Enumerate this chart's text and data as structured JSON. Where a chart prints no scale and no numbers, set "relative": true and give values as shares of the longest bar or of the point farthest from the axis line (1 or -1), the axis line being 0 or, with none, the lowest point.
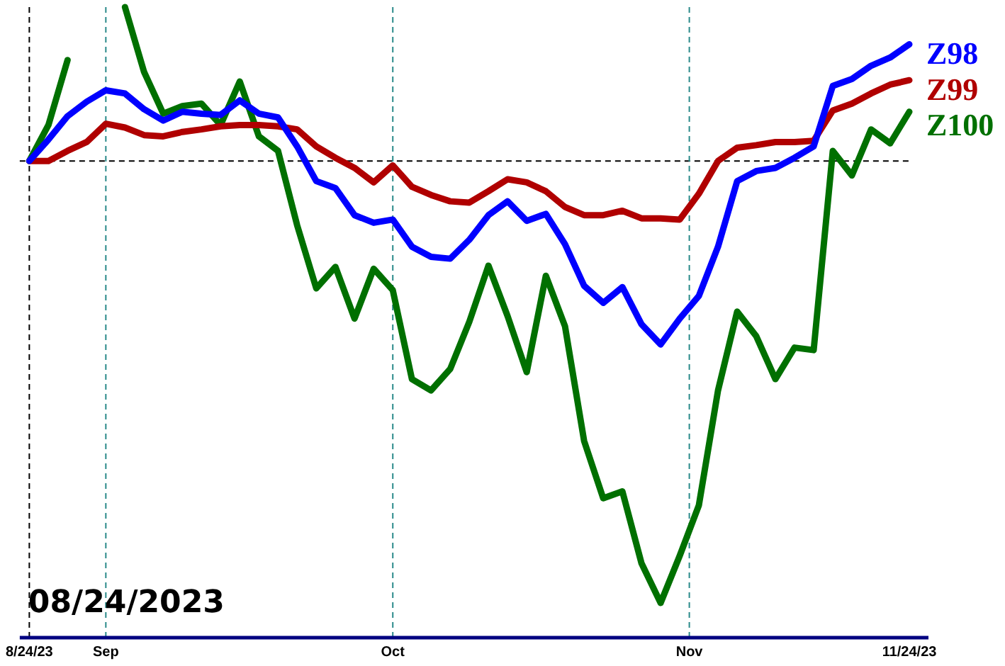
{
  "chart_data": {
    "type": "line",
    "relative": true,
    "x": [
      "2023-08-24",
      "2023-08-26",
      "2023-08-28",
      "2023-08-30",
      "2023-09-01",
      "2023-09-03",
      "2023-09-05",
      "2023-09-07",
      "2023-09-09",
      "2023-09-11",
      "2023-09-13",
      "2023-09-15",
      "2023-09-17",
      "2023-09-19",
      "2023-09-21",
      "2023-09-23",
      "2023-09-25",
      "2023-09-27",
      "2023-09-29",
      "2023-10-01",
      "2023-10-03",
      "2023-10-05",
      "2023-10-07",
      "2023-10-09",
      "2023-10-11",
      "2023-10-13",
      "2023-10-15",
      "2023-10-17",
      "2023-10-19",
      "2023-10-21",
      "2023-10-23",
      "2023-10-25",
      "2023-10-27",
      "2023-10-29",
      "2023-10-31",
      "2023-11-02",
      "2023-11-04",
      "2023-11-06",
      "2023-11-08",
      "2023-11-10",
      "2023-11-12",
      "2023-11-14",
      "2023-11-16",
      "2023-11-18",
      "2023-11-20",
      "2023-11-22",
      "2023-11-24"
    ],
    "series": [
      {
        "name": "Z98",
        "color": "#0000ff",
        "values": [
          0.756,
          0.79,
          0.827,
          0.85,
          0.868,
          0.863,
          0.838,
          0.82,
          0.834,
          0.831,
          0.829,
          0.852,
          0.831,
          0.825,
          0.779,
          0.724,
          0.713,
          0.67,
          0.658,
          0.663,
          0.62,
          0.604,
          0.601,
          0.631,
          0.67,
          0.692,
          0.661,
          0.672,
          0.624,
          0.558,
          0.531,
          0.556,
          0.497,
          0.465,
          0.506,
          0.542,
          0.62,
          0.724,
          0.74,
          0.745,
          0.761,
          0.779,
          0.875,
          0.886,
          0.907,
          0.92,
          0.941
        ]
      },
      {
        "name": "Z99",
        "color": "#b00000",
        "values": [
          0.756,
          0.756,
          0.772,
          0.786,
          0.815,
          0.809,
          0.797,
          0.795,
          0.802,
          0.806,
          0.811,
          0.813,
          0.813,
          0.811,
          0.806,
          0.779,
          0.761,
          0.745,
          0.722,
          0.749,
          0.715,
          0.702,
          0.692,
          0.69,
          0.708,
          0.727,
          0.722,
          0.708,
          0.683,
          0.67,
          0.67,
          0.677,
          0.665,
          0.665,
          0.663,
          0.704,
          0.756,
          0.777,
          0.781,
          0.786,
          0.786,
          0.788,
          0.836,
          0.847,
          0.863,
          0.877,
          0.884
        ]
      },
      {
        "name": "Z100",
        "color": "#007000",
        "values": [
          0.756,
          0.813,
          0.916,
          null,
          null,
          1,
          0.897,
          0.831,
          0.843,
          0.847,
          0.813,
          0.882,
          0.795,
          0.772,
          0.654,
          0.554,
          0.588,
          0.506,
          0.585,
          0.551,
          0.41,
          0.392,
          0.426,
          0.501,
          0.59,
          0.51,
          0.421,
          0.574,
          0.494,
          0.312,
          0.221,
          0.232,
          0.118,
          0.055,
          0.13,
          0.21,
          0.392,
          0.517,
          0.478,
          0.41,
          0.46,
          0.456,
          0.772,
          0.733,
          0.806,
          0.784,
          0.834
        ]
      }
    ],
    "xlim": [
      "2023-08-23",
      "2023-11-26"
    ],
    "xticks": [
      {
        "value": "2023-08-24",
        "label": "8/24/23"
      },
      {
        "value": "2023-09-01",
        "label": "Sep"
      },
      {
        "value": "2023-10-01",
        "label": "Oct"
      },
      {
        "value": "2023-11-01",
        "label": "Nov"
      },
      {
        "value": "2023-11-24",
        "label": "11/24/23"
      }
    ],
    "ref_lines": [
      {
        "axis": "y",
        "value": 0.756,
        "color": "#000000",
        "line_style": "dashed"
      },
      {
        "axis": "x",
        "value": "2023-08-24",
        "color": "#000000",
        "line_style": "dashed"
      },
      {
        "axis": "x",
        "value": "2023-09-01",
        "color": "#2a8a8a",
        "line_style": "dashed"
      },
      {
        "axis": "x",
        "value": "2023-10-01",
        "color": "#2a8a8a",
        "line_style": "dashed"
      },
      {
        "axis": "x",
        "value": "2023-11-01",
        "color": "#2a8a8a",
        "line_style": "dashed"
      }
    ],
    "annotations": [
      "08/24/2023"
    ],
    "legend": false,
    "grid": false,
    "marker": "none",
    "line_style": "solid"
  }
}
